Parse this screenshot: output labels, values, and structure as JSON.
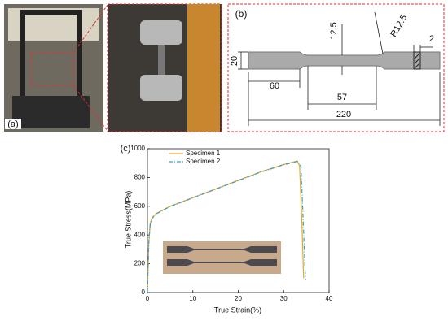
{
  "panels": {
    "a": "(a)",
    "b": "(b)",
    "c": "(c)"
  },
  "panel_b": {
    "dimensions": {
      "width": "20",
      "grip": "60",
      "gauge": "57",
      "total": "220",
      "depth": "12.5",
      "radius": "R12.5",
      "thickness": "2"
    }
  },
  "chart_data": {
    "type": "line",
    "xlabel": "True Strain(%)",
    "ylabel": "True Stress(MPa)",
    "xlim": [
      0,
      40
    ],
    "xticks": [
      0,
      10,
      20,
      30,
      40
    ],
    "ylim": [
      0,
      1000
    ],
    "yticks": [
      0,
      200,
      400,
      600,
      800,
      1000
    ],
    "legend": "upper left",
    "series": [
      {
        "name": "Specimen 1",
        "color": "#e8a820",
        "linestyle": "solid",
        "x": [
          0,
          0.3,
          0.6,
          1,
          2,
          5,
          10,
          15,
          20,
          25,
          30,
          33,
          33.5,
          34,
          34.4
        ],
        "values": [
          0,
          350,
          480,
          520,
          550,
          600,
          660,
          720,
          780,
          840,
          890,
          915,
          880,
          500,
          100
        ]
      },
      {
        "name": "Specimen 2",
        "color": "#3aa0c8",
        "linestyle": "dashdot",
        "x": [
          0,
          0.3,
          0.6,
          1,
          2,
          5,
          10,
          15,
          20,
          25,
          30,
          33,
          33.8,
          34.3,
          34.8
        ],
        "values": [
          0,
          340,
          470,
          515,
          548,
          598,
          658,
          718,
          778,
          838,
          888,
          912,
          880,
          500,
          90
        ]
      }
    ]
  }
}
